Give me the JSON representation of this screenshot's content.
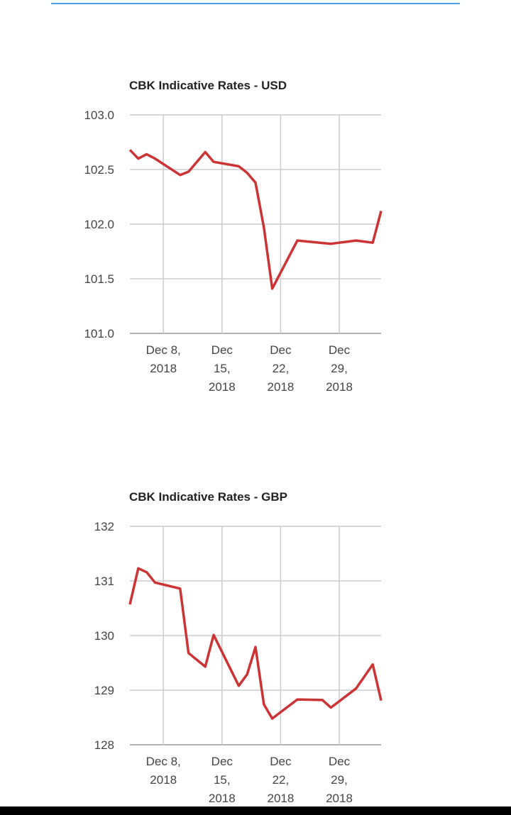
{
  "chart_data": [
    {
      "type": "line",
      "title": "CBK Indicative Rates - USD",
      "xlabel": "",
      "ylabel": "",
      "ylim": [
        101.0,
        103.0
      ],
      "yticks": [
        "101.0",
        "101.5",
        "102.0",
        "102.5",
        "103.0"
      ],
      "xticks": [
        {
          "date": "2018-12-08",
          "label": [
            "Dec 8,",
            "2018"
          ]
        },
        {
          "date": "2018-12-15",
          "label": [
            "Dec",
            "15,",
            "2018"
          ]
        },
        {
          "date": "2018-12-22",
          "label": [
            "Dec",
            "22,",
            "2018"
          ]
        },
        {
          "date": "2018-12-29",
          "label": [
            "Dec",
            "29,",
            "2018"
          ]
        }
      ],
      "xlim": [
        "2018-12-04",
        "2019-01-03"
      ],
      "grid": true,
      "color": "#cc3333",
      "series": [
        {
          "name": "USD",
          "x": [
            "2018-12-04",
            "2018-12-05",
            "2018-12-06",
            "2018-12-07",
            "2018-12-10",
            "2018-12-11",
            "2018-12-13",
            "2018-12-14",
            "2018-12-17",
            "2018-12-18",
            "2018-12-19",
            "2018-12-20",
            "2018-12-21",
            "2018-12-24",
            "2018-12-28",
            "2018-12-31",
            "2019-01-02",
            "2019-01-03"
          ],
          "values": [
            102.68,
            102.6,
            102.64,
            102.6,
            102.45,
            102.48,
            102.66,
            102.57,
            102.53,
            102.47,
            102.38,
            101.97,
            101.41,
            101.85,
            101.82,
            101.85,
            101.83,
            102.12
          ]
        }
      ]
    },
    {
      "type": "line",
      "title": "CBK Indicative Rates - GBP",
      "xlabel": "",
      "ylabel": "",
      "ylim": [
        128,
        132
      ],
      "yticks": [
        "128",
        "129",
        "130",
        "131",
        "132"
      ],
      "xticks": [
        {
          "date": "2018-12-08",
          "label": [
            "Dec 8,",
            "2018"
          ]
        },
        {
          "date": "2018-12-15",
          "label": [
            "Dec",
            "15,",
            "2018"
          ]
        },
        {
          "date": "2018-12-22",
          "label": [
            "Dec",
            "22,",
            "2018"
          ]
        },
        {
          "date": "2018-12-29",
          "label": [
            "Dec",
            "29,",
            "2018"
          ]
        }
      ],
      "xlim": [
        "2018-12-04",
        "2019-01-03"
      ],
      "grid": true,
      "color": "#cc3333",
      "series": [
        {
          "name": "GBP",
          "x": [
            "2018-12-04",
            "2018-12-05",
            "2018-12-06",
            "2018-12-07",
            "2018-12-10",
            "2018-12-11",
            "2018-12-13",
            "2018-12-14",
            "2018-12-17",
            "2018-12-18",
            "2018-12-19",
            "2018-12-20",
            "2018-12-21",
            "2018-12-24",
            "2018-12-27",
            "2018-12-28",
            "2018-12-31",
            "2019-01-02",
            "2019-01-03"
          ],
          "values": [
            130.57,
            131.23,
            131.16,
            130.97,
            130.86,
            129.68,
            129.43,
            130.01,
            129.08,
            129.29,
            129.79,
            128.74,
            128.48,
            128.83,
            128.82,
            128.68,
            129.03,
            129.47,
            128.81
          ]
        }
      ]
    }
  ]
}
